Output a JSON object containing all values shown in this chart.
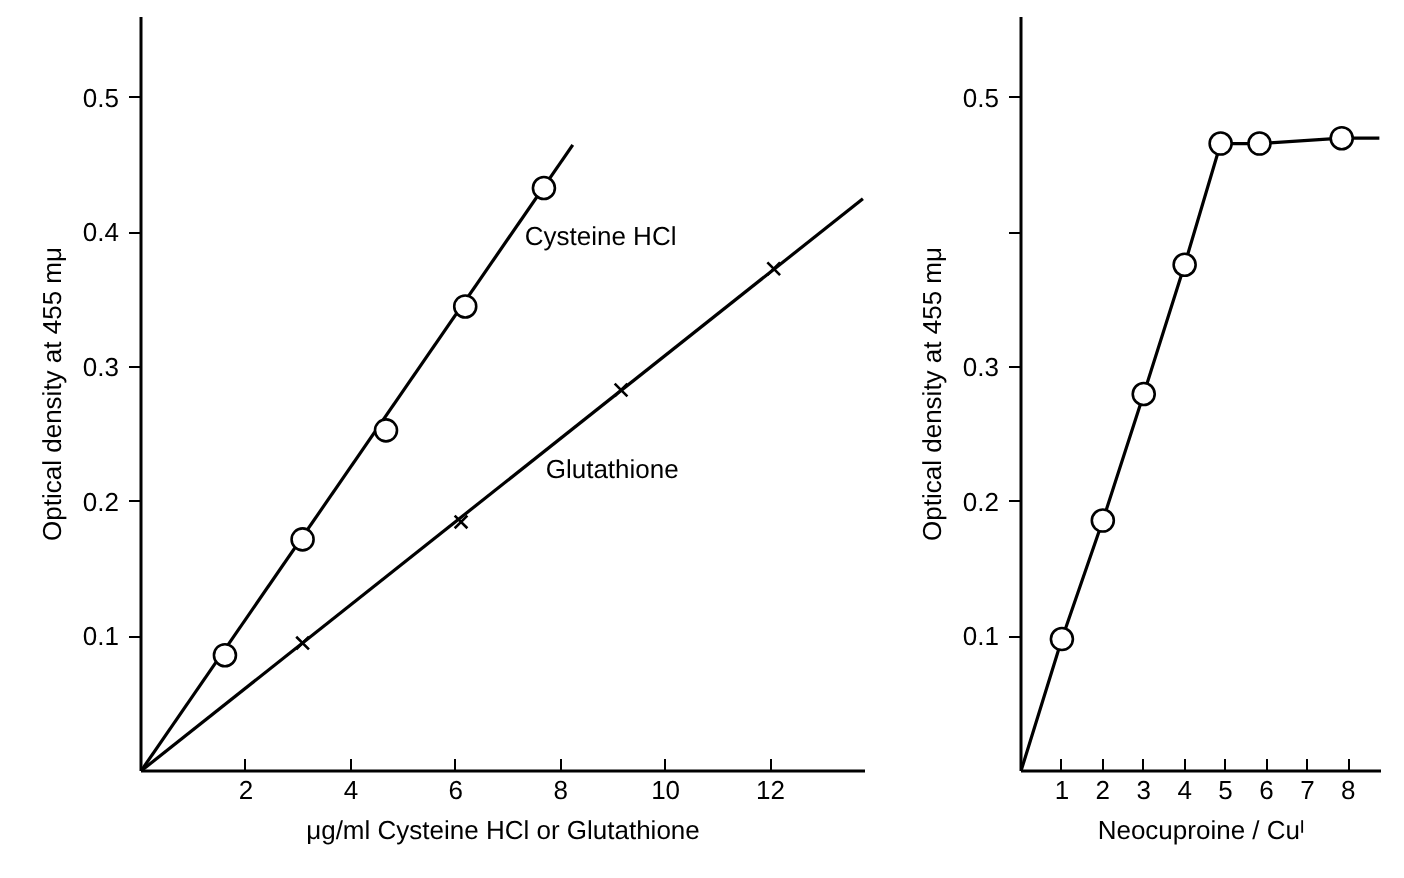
{
  "chart_data": [
    {
      "type": "scatter",
      "xlabel": "μg/ml Cysteine HCl or Glutathione",
      "ylabel": "Optical density at 455 mμ",
      "xlim": [
        0,
        13.8
      ],
      "ylim": [
        0,
        0.56
      ],
      "xticks": [
        {
          "value": 0,
          "label": null
        },
        2,
        4,
        6,
        8,
        10,
        12
      ],
      "yticks": [
        0.1,
        0.2,
        0.3,
        0.4,
        0.5
      ],
      "grid": false,
      "series": [
        {
          "type": "line",
          "color": "#000000",
          "marker": "none",
          "x": [
            0,
            8.23
          ],
          "values": [
            0,
            0.465
          ]
        },
        {
          "type": "line",
          "color": "#000000",
          "marker": "none",
          "x": [
            0,
            13.76
          ],
          "values": [
            0,
            0.425
          ]
        },
        {
          "color": "#000000",
          "marker": "circle",
          "x": [
            1.6,
            3.08,
            4.67,
            6.18,
            7.68
          ],
          "values": [
            0.086,
            0.172,
            0.253,
            0.345,
            0.433
          ]
        },
        {
          "color": "#000000",
          "marker": "cross",
          "x": [
            3.08,
            6.1,
            9.15,
            12.06
          ],
          "values": [
            0.095,
            0.185,
            0.283,
            0.373
          ]
        }
      ],
      "annotations": [
        {
          "text": "Cysteine HCl",
          "x": 7.2,
          "y": 0.397
        },
        {
          "text": "Glutathione",
          "x": 7.6,
          "y": 0.224
        }
      ]
    },
    {
      "type": "line",
      "xlabel": "Neocuproine / Cuᴵ",
      "ylabel": "Optical density at 455 mμ",
      "xlim": [
        0,
        8.8
      ],
      "ylim": [
        0,
        0.56
      ],
      "xticks": [
        1,
        2,
        3,
        4,
        5,
        6,
        7,
        8
      ],
      "yticks": [
        0.1,
        0.2,
        0.3,
        {
          "value": 0.4,
          "label": null
        },
        0.5
      ],
      "grid": false,
      "series": [
        {
          "color": "#000000",
          "marker": "none",
          "x": [
            0,
            1,
            2,
            3,
            4,
            4.88,
            5.83,
            7.84,
            8.76
          ],
          "values": [
            0,
            0.098,
            0.186,
            0.28,
            0.376,
            0.466,
            0.466,
            0.47,
            0.47
          ]
        },
        {
          "type": "scatter",
          "color": "#000000",
          "marker": "circle",
          "x": [
            1,
            2,
            3,
            4,
            4.88,
            5.83,
            7.84
          ],
          "values": [
            0.098,
            0.186,
            0.28,
            0.376,
            0.466,
            0.466,
            0.47
          ]
        }
      ]
    }
  ]
}
